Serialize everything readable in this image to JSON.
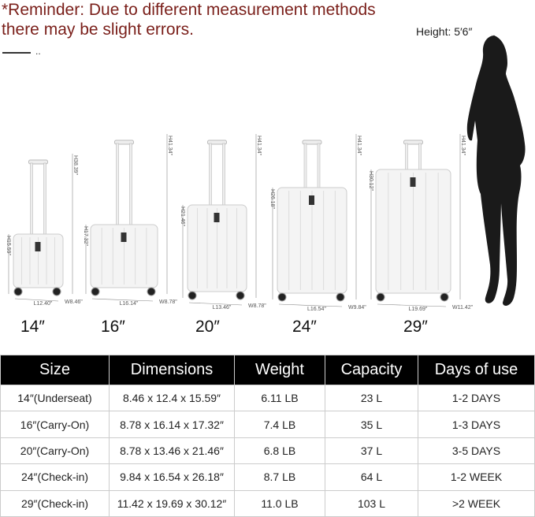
{
  "reminder": "*Reminder: Due to different measurement methods there may be slight errors.",
  "separator_dots": "..",
  "person_height": "Height: 5′6″",
  "suitcases": [
    {
      "size": "14″",
      "length": "L12.40\"",
      "width": "W8.46\"",
      "height": "H15.59\"",
      "handle_height": "H38.39\""
    },
    {
      "size": "16″",
      "length": "L16.14\"",
      "width": "W8.78\"",
      "height": "H17.32\"",
      "handle_height": "H41.34\""
    },
    {
      "size": "20″",
      "length": "L13.46\"",
      "width": "W8.78\"",
      "height": "H21.46\"",
      "handle_height": "H41.34\""
    },
    {
      "size": "24″",
      "length": "L16.54\"",
      "width": "W9.84\"",
      "height": "H26.18\"",
      "handle_height": "H41.34\""
    },
    {
      "size": "29″",
      "length": "L19.69\"",
      "width": "W11.42\"",
      "height": "H30.12\"",
      "handle_height": "H41.34\""
    }
  ],
  "table": {
    "headers": [
      "Size",
      "Dimensions",
      "Weight",
      "Capacity",
      "Days of use"
    ],
    "rows": [
      [
        "14″(Underseat)",
        "8.46 x 12.4 x 15.59″",
        "6.11 LB",
        "23 L",
        "1-2 DAYS"
      ],
      [
        "16″(Carry-On)",
        "8.78 x 16.14 x 17.32″",
        "7.4 LB",
        "35 L",
        "1-3 DAYS"
      ],
      [
        "20″(Carry-On)",
        "8.78 x 13.46 x 21.46″",
        "6.8 LB",
        "37 L",
        "3-5 DAYS"
      ],
      [
        "24″(Check-in)",
        "9.84 x 16.54 x 26.18″",
        "8.7 LB",
        "64 L",
        "1-2 WEEK"
      ],
      [
        "29″(Check-in)",
        "11.42 x 19.69 x 30.12″",
        "11.0 LB",
        "103 L",
        ">2 WEEK"
      ]
    ]
  },
  "colors": {
    "reminder": "#7a1f1a",
    "header_bg": "#000000",
    "silhouette": "#1a1a1a"
  }
}
